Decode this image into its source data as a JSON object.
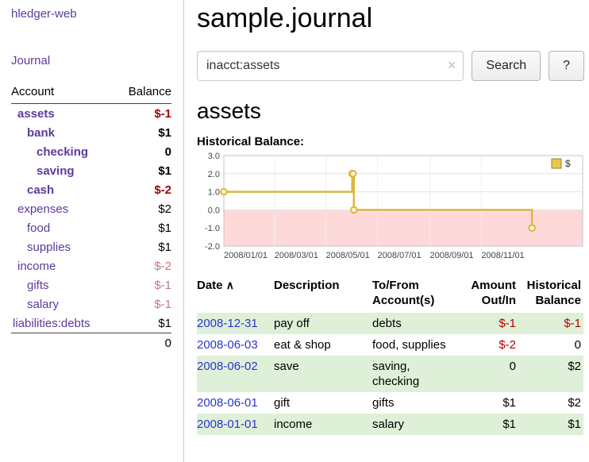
{
  "sidebar": {
    "app_title": "hledger-web",
    "journal_link": "Journal",
    "accounts": {
      "account_header": "Account",
      "balance_header": "Balance",
      "rows": [
        {
          "name": "assets",
          "balance": "$-1",
          "indent": 8,
          "bold": true,
          "name_style": "negative",
          "balance_style": "negative"
        },
        {
          "name": "bank",
          "balance": "$1",
          "indent": 20,
          "bold": true,
          "name_style": "link",
          "balance_style": "plain"
        },
        {
          "name": "checking",
          "balance": "0",
          "indent": 32,
          "bold": true,
          "name_style": "link",
          "balance_style": "plain"
        },
        {
          "name": "saving",
          "balance": "$1",
          "indent": 32,
          "bold": true,
          "name_style": "link",
          "balance_style": "plain"
        },
        {
          "name": "cash",
          "balance": "$-2",
          "indent": 20,
          "bold": true,
          "name_style": "negative",
          "balance_style": "negative"
        },
        {
          "name": "expenses",
          "balance": "$2",
          "indent": 8,
          "bold": false,
          "name_style": "link",
          "balance_style": "plain"
        },
        {
          "name": "food",
          "balance": "$1",
          "indent": 20,
          "bold": false,
          "name_style": "link",
          "balance_style": "plain"
        },
        {
          "name": "supplies",
          "balance": "$1",
          "indent": 20,
          "bold": false,
          "name_style": "link",
          "balance_style": "plain"
        },
        {
          "name": "income",
          "balance": "$-2",
          "indent": 8,
          "bold": false,
          "name_style": "link",
          "balance_style": "negative-soft"
        },
        {
          "name": "gifts",
          "balance": "$-1",
          "indent": 20,
          "bold": false,
          "name_style": "link",
          "balance_style": "negative-soft"
        },
        {
          "name": "salary",
          "balance": "$-1",
          "indent": 20,
          "bold": false,
          "name_style": "link",
          "balance_style": "negative-soft"
        },
        {
          "name": "liabilities:debts",
          "balance": "$1",
          "indent": 2,
          "bold": false,
          "name_style": "link",
          "balance_style": "plain"
        }
      ],
      "total": "0"
    }
  },
  "main": {
    "title": "sample.journal",
    "search": {
      "value": "inacct:assets",
      "clear_icon": "×",
      "button_label": "Search",
      "help_label": "?"
    },
    "section_title": "assets",
    "chart_label": "Historical Balance:"
  },
  "chart_data": {
    "type": "line",
    "step": true,
    "title": "Historical Balance",
    "x": [
      "2008-01-01",
      "2008-06-01",
      "2008-06-02",
      "2008-06-03",
      "2008-12-31"
    ],
    "series": [
      {
        "name": "$",
        "values": [
          1,
          2,
          2,
          0,
          -1
        ]
      }
    ],
    "ylim": [
      -2,
      3
    ],
    "yticks": [
      "3.0",
      "2.0",
      "1.0",
      "0.0",
      "-1.0",
      "-2.0"
    ],
    "xticks": [
      "2008/01/01",
      "2008/03/01",
      "2008/05/01",
      "2008/07/01",
      "2008/09/01",
      "2008/11/01"
    ],
    "x_domain": [
      "2008-01-01",
      "2009-03-01"
    ],
    "legend": {
      "label": "$",
      "position": "top-right"
    },
    "grid": true,
    "colors": {
      "line": "#dcb73c",
      "marker_fill": "#fcf2cf",
      "legend_swatch": "#e9c64d",
      "legend_border": "#9c842b",
      "negative_region": "#ffd9d9",
      "grid": "#e4e4e4",
      "axis_text": "#444",
      "border": "#c4c4c4"
    }
  },
  "transactions": {
    "headers": {
      "date": "Date",
      "sort_indicator": "∧",
      "description": "Description",
      "accounts": "To/From Account(s)",
      "amount": "Amount Out/In",
      "balance": "Historical Balance"
    },
    "rows": [
      {
        "date": "2008-12-31",
        "description": "pay off",
        "accounts": "debts",
        "amount": "$-1",
        "amount_negative": true,
        "balance": "$-1",
        "balance_negative": true
      },
      {
        "date": "2008-06-03",
        "description": "eat & shop",
        "accounts": "food, supplies",
        "amount": "$-2",
        "amount_negative": true,
        "balance": "0",
        "balance_negative": false
      },
      {
        "date": "2008-06-02",
        "description": "save",
        "accounts": "saving, checking",
        "amount": "0",
        "amount_negative": false,
        "balance": "$2",
        "balance_negative": false
      },
      {
        "date": "2008-06-01",
        "description": "gift",
        "accounts": "gifts",
        "amount": "$1",
        "amount_negative": false,
        "balance": "$2",
        "balance_negative": false
      },
      {
        "date": "2008-01-01",
        "description": "income",
        "accounts": "salary",
        "amount": "$1",
        "amount_negative": false,
        "balance": "$1",
        "balance_negative": false
      }
    ]
  },
  "colors": {
    "link_purple": "#5c3a9e",
    "link_blue": "#2a35cf",
    "negative_strong": "#a40000",
    "negative_soft": "#c27878",
    "row_green": "#dff0d8"
  }
}
